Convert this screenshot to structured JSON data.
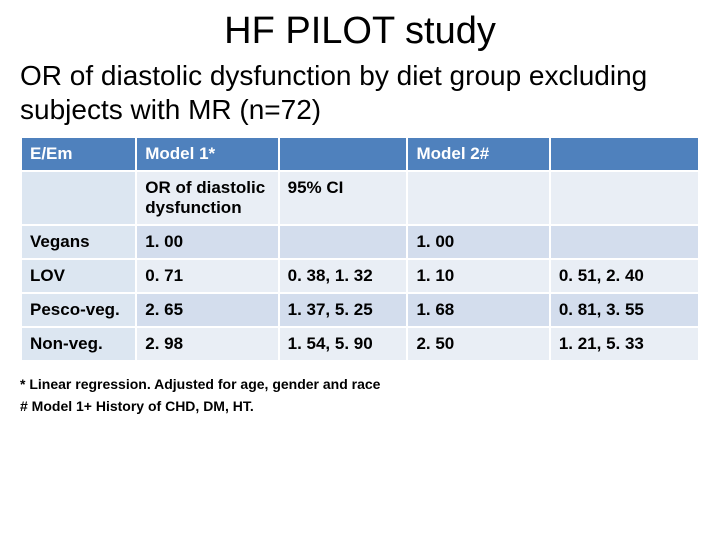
{
  "title": "HF PILOT study",
  "subtitle": "OR of diastolic dysfunction by diet group excluding subjects with MR (n=72)",
  "table": {
    "header": [
      "E/Em",
      "Model 1*",
      "",
      "Model 2#",
      ""
    ],
    "subheader": [
      "",
      "OR of diastolic dysfunction",
      "95% CI",
      "",
      ""
    ],
    "rows": [
      [
        "Vegans",
        "1. 00",
        "",
        "1. 00",
        ""
      ],
      [
        "LOV",
        "0. 71",
        "0. 38, 1. 32",
        "1. 10",
        "0. 51, 2. 40"
      ],
      [
        "Pesco-veg.",
        "2. 65",
        "1. 37, 5. 25",
        "1. 68",
        "0. 81, 3. 55"
      ],
      [
        "Non-veg.",
        "2. 98",
        "1. 54, 5. 90",
        "2. 50",
        "1. 21, 5. 33"
      ]
    ]
  },
  "footnote1": "* Linear regression.  Adjusted for age, gender and race",
  "footnote2": "# Model 1+ History of CHD, DM, HT.",
  "colors": {
    "header_bg": "#4f81bd",
    "header_fg": "#ffffff",
    "label_bg": "#dce6f1",
    "row_odd_bg": "#e9eef5",
    "row_even_bg": "#d3dded",
    "border": "#ffffff"
  },
  "fonts": {
    "title_size": 38,
    "subtitle_size": 28,
    "cell_size": 17,
    "footnote_size": 14
  }
}
